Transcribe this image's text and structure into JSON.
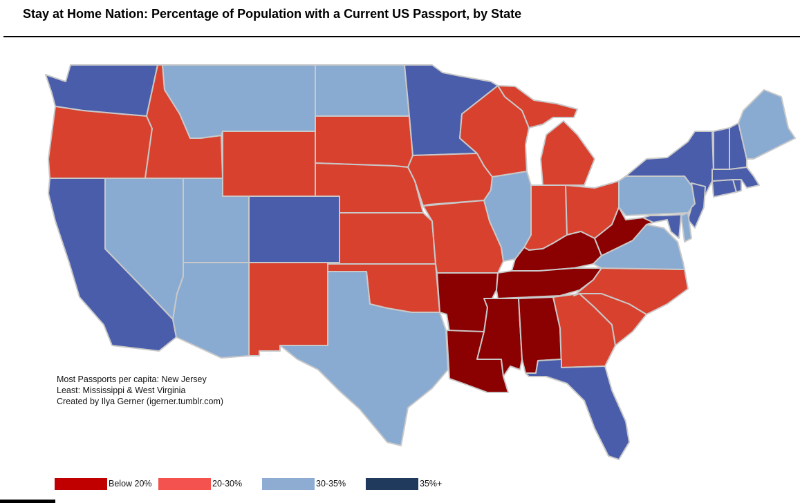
{
  "title": "Stay at Home Nation: Percentage of Population with a Current US Passport, by State",
  "notes": {
    "most": "Most Passports per capita: New Jersey",
    "least": "Least: Mississippi & West Virginia",
    "credit": "Created by Ilya Gerner (igerner.tumblr.com)"
  },
  "legend": [
    {
      "label": "Below 20%",
      "color": "#c00000"
    },
    {
      "label": "20-30%",
      "color": "#f4524e"
    },
    {
      "label": "30-35%",
      "color": "#8eabd2"
    },
    {
      "label": "35%+",
      "color": "#203a5e"
    }
  ],
  "map_colors": {
    "below20": "#8b0000",
    "r20_30": "#d9412f",
    "r30_35": "#8aabd1",
    "r35plus": "#4a5daa"
  },
  "states": [
    {
      "name": "Washington",
      "category": "r35plus"
    },
    {
      "name": "Oregon",
      "category": "r20_30"
    },
    {
      "name": "California",
      "category": "r35plus"
    },
    {
      "name": "Idaho",
      "category": "r20_30"
    },
    {
      "name": "Nevada",
      "category": "r30_35"
    },
    {
      "name": "Montana",
      "category": "r30_35"
    },
    {
      "name": "Wyoming",
      "category": "r20_30"
    },
    {
      "name": "Utah",
      "category": "r30_35"
    },
    {
      "name": "Arizona",
      "category": "r30_35"
    },
    {
      "name": "Colorado",
      "category": "r35plus"
    },
    {
      "name": "New Mexico",
      "category": "r20_30"
    },
    {
      "name": "North Dakota",
      "category": "r30_35"
    },
    {
      "name": "South Dakota",
      "category": "r20_30"
    },
    {
      "name": "Nebraska",
      "category": "r20_30"
    },
    {
      "name": "Kansas",
      "category": "r20_30"
    },
    {
      "name": "Oklahoma",
      "category": "r20_30"
    },
    {
      "name": "Texas",
      "category": "r30_35"
    },
    {
      "name": "Minnesota",
      "category": "r35plus"
    },
    {
      "name": "Iowa",
      "category": "r20_30"
    },
    {
      "name": "Missouri",
      "category": "r20_30"
    },
    {
      "name": "Arkansas",
      "category": "below20"
    },
    {
      "name": "Louisiana",
      "category": "below20"
    },
    {
      "name": "Wisconsin",
      "category": "r20_30"
    },
    {
      "name": "Illinois",
      "category": "r30_35"
    },
    {
      "name": "Michigan",
      "category": "r20_30"
    },
    {
      "name": "Indiana",
      "category": "r20_30"
    },
    {
      "name": "Ohio",
      "category": "r20_30"
    },
    {
      "name": "Kentucky",
      "category": "below20"
    },
    {
      "name": "Tennessee",
      "category": "below20"
    },
    {
      "name": "Mississippi",
      "category": "below20"
    },
    {
      "name": "Alabama",
      "category": "below20"
    },
    {
      "name": "Georgia",
      "category": "r20_30"
    },
    {
      "name": "Florida",
      "category": "r35plus"
    },
    {
      "name": "South Carolina",
      "category": "r20_30"
    },
    {
      "name": "North Carolina",
      "category": "r20_30"
    },
    {
      "name": "Virginia",
      "category": "r30_35"
    },
    {
      "name": "West Virginia",
      "category": "below20"
    },
    {
      "name": "Pennsylvania",
      "category": "r30_35"
    },
    {
      "name": "New York",
      "category": "r35plus"
    },
    {
      "name": "Maryland",
      "category": "r35plus"
    },
    {
      "name": "Delaware",
      "category": "r30_35"
    },
    {
      "name": "New Jersey",
      "category": "r35plus"
    },
    {
      "name": "Connecticut",
      "category": "r35plus"
    },
    {
      "name": "Rhode Island",
      "category": "r35plus"
    },
    {
      "name": "Massachusetts",
      "category": "r35plus"
    },
    {
      "name": "Vermont",
      "category": "r35plus"
    },
    {
      "name": "New Hampshire",
      "category": "r35plus"
    },
    {
      "name": "Maine",
      "category": "r30_35"
    }
  ]
}
